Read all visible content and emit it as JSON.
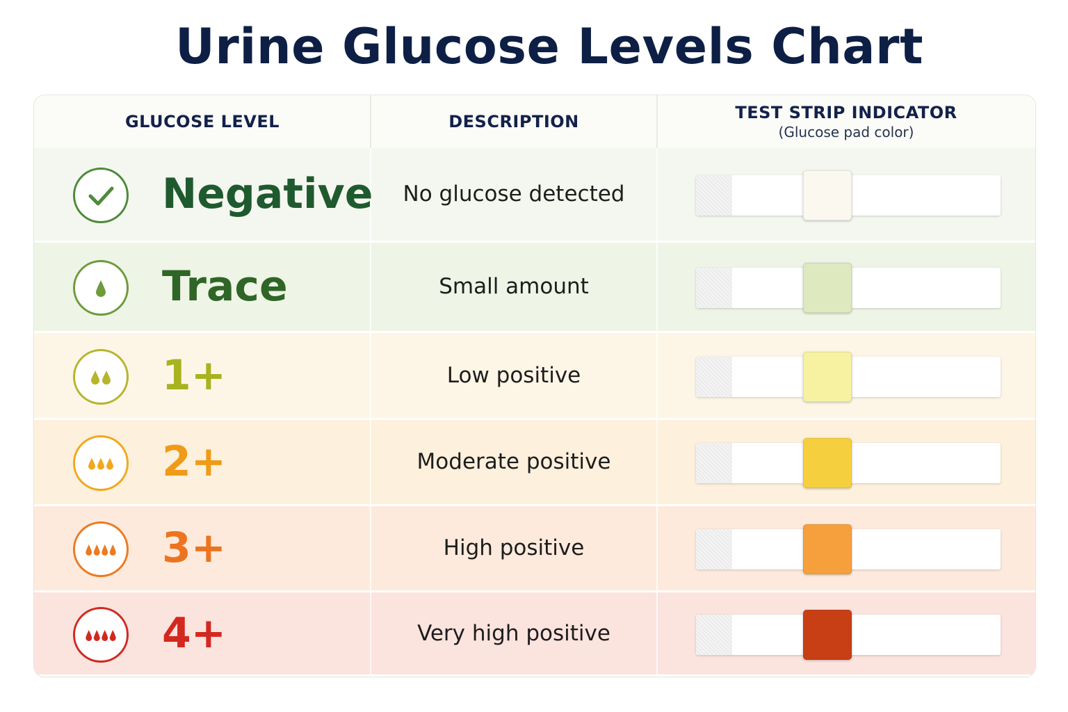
{
  "title": "Urine Glucose Levels Chart",
  "header": {
    "level": "GLUCOSE LEVEL",
    "description": "DESCRIPTION",
    "indicator": "TEST STRIP INDICATOR",
    "indicator_sub": "(Glucose pad color)"
  },
  "chart_data": {
    "type": "table",
    "title": "Urine Glucose Levels Chart",
    "columns": [
      "GLUCOSE LEVEL",
      "DESCRIPTION",
      "TEST STRIP INDICATOR (Glucose pad color)"
    ],
    "rows": [
      {
        "level": "Negative",
        "description": "No glucose detected",
        "icon": "check-icon",
        "drops": 0,
        "text_color": "#1f5a2e",
        "row_bg": "#f4f7ef",
        "ring_color": "#4e8a3a",
        "pad_color": "#fbf8ef"
      },
      {
        "level": "Trace",
        "description": "Small amount",
        "icon": "drop-icon",
        "drops": 1,
        "text_color": "#2f6526",
        "row_bg": "#eef4e6",
        "ring_color": "#6f9a3d",
        "pad_color": "#dfe9bf"
      },
      {
        "level": "1+",
        "description": "Low positive",
        "icon": "drops-icon",
        "drops": 2,
        "text_color": "#a9b21f",
        "row_bg": "#fdf6e6",
        "ring_color": "#b7b42e",
        "pad_color": "#f7f2a2"
      },
      {
        "level": "2+",
        "description": "Moderate positive",
        "icon": "drops-icon",
        "drops": 3,
        "text_color": "#ef9b17",
        "row_bg": "#fdf0dc",
        "ring_color": "#f1a81e",
        "pad_color": "#f6cf3e"
      },
      {
        "level": "3+",
        "description": "High positive",
        "icon": "drops-icon",
        "drops": 4,
        "text_color": "#ec7420",
        "row_bg": "#fdeadc",
        "ring_color": "#ec7a22",
        "pad_color": "#f6a03d"
      },
      {
        "level": "4+",
        "description": "Very high positive",
        "icon": "drops-icon",
        "drops": 4,
        "text_color": "#d3281f",
        "row_bg": "#fbe3de",
        "ring_color": "#cf2a22",
        "pad_color": "#c83f16"
      }
    ]
  }
}
